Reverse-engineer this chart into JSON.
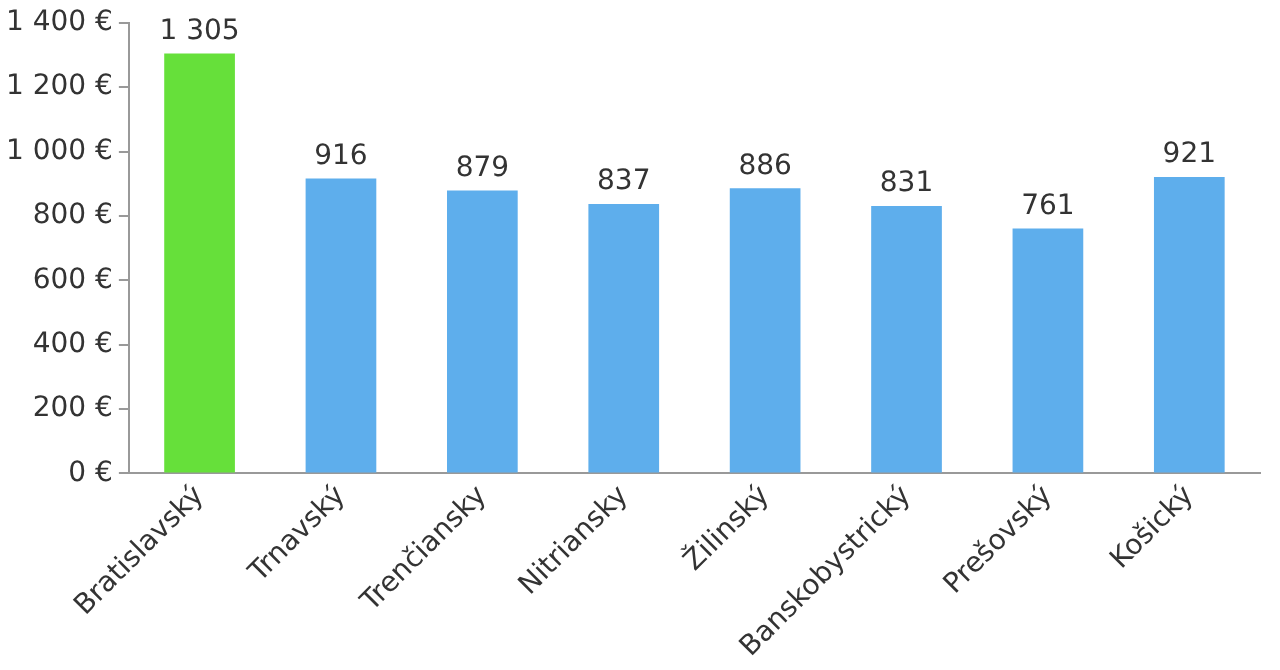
{
  "chart_data": {
    "type": "bar",
    "categories": [
      "Bratislavský",
      "Trnavský",
      "Trenčiansky",
      "Nitriansky",
      "Žilinský",
      "Banskobystrický",
      "Prešovský",
      "Košický"
    ],
    "values": [
      1305,
      916,
      879,
      837,
      886,
      831,
      761,
      921
    ],
    "colors": [
      "#66e03a",
      "#5eaeec",
      "#5eaeec",
      "#5eaeec",
      "#5eaeec",
      "#5eaeec",
      "#5eaeec",
      "#5eaeec"
    ],
    "value_labels": [
      "1 305",
      "916",
      "879",
      "837",
      "886",
      "831",
      "761",
      "921"
    ],
    "ylim": [
      0,
      1400
    ],
    "yticks": [
      {
        "value": 0,
        "label": "0 €"
      },
      {
        "value": 200,
        "label": "200 €"
      },
      {
        "value": 400,
        "label": "400 €"
      },
      {
        "value": 600,
        "label": "600 €"
      },
      {
        "value": 800,
        "label": "800 €"
      },
      {
        "value": 1000,
        "label": "1 000 €"
      },
      {
        "value": 1200,
        "label": "1 200 €"
      },
      {
        "value": 1400,
        "label": "1 400 €"
      }
    ],
    "grid": false,
    "legend": false
  }
}
